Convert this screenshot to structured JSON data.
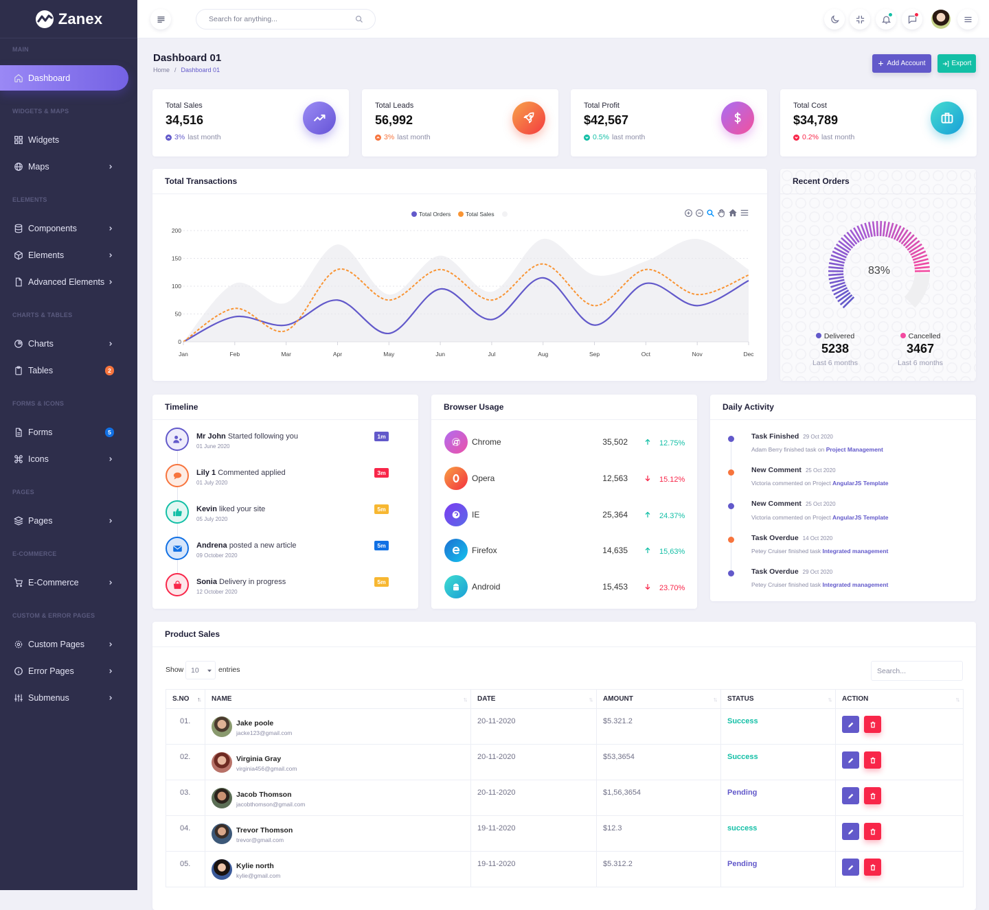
{
  "app": {
    "name": "Zanex"
  },
  "sidebar": {
    "sections": [
      {
        "label": "MAIN",
        "items": [
          {
            "label": "Dashboard",
            "icon": "home-icon",
            "active": true
          }
        ]
      },
      {
        "label": "WIDGETS & MAPS",
        "items": [
          {
            "label": "Widgets",
            "icon": "grid-icon"
          },
          {
            "label": "Maps",
            "icon": "globe-icon",
            "has_submenu": true
          }
        ]
      },
      {
        "label": "ELEMENTS",
        "items": [
          {
            "label": "Components",
            "icon": "database-icon",
            "has_submenu": true
          },
          {
            "label": "Elements",
            "icon": "package-icon",
            "has_submenu": true
          },
          {
            "label": "Advanced Elements",
            "icon": "file-icon",
            "has_submenu": true
          }
        ]
      },
      {
        "label": "CHARTS & TABLES",
        "items": [
          {
            "label": "Charts",
            "icon": "pie-chart-icon",
            "has_submenu": true
          },
          {
            "label": "Tables",
            "icon": "clipboard-icon",
            "badge": "2",
            "badge_color": "#f7743d"
          }
        ]
      },
      {
        "label": "FORMS & ICONS",
        "items": [
          {
            "label": "Forms",
            "icon": "file-text-icon",
            "badge": "5",
            "badge_color": "#1170e4"
          },
          {
            "label": "Icons",
            "icon": "command-icon",
            "has_submenu": true
          }
        ]
      },
      {
        "label": "PAGES",
        "items": [
          {
            "label": "Pages",
            "icon": "layers-icon",
            "has_submenu": true
          }
        ]
      },
      {
        "label": "E-COMMERCE",
        "items": [
          {
            "label": "E-Commerce",
            "icon": "shopping-cart-icon",
            "has_submenu": true
          }
        ]
      },
      {
        "label": "CUSTOM & ERROR PAGES",
        "items": [
          {
            "label": "Custom Pages",
            "icon": "settings-icon",
            "has_submenu": true
          },
          {
            "label": "Error Pages",
            "icon": "info-icon",
            "has_submenu": true
          },
          {
            "label": "Submenus",
            "icon": "sliders-icon",
            "has_submenu": true
          }
        ]
      }
    ]
  },
  "header": {
    "search_placeholder": "Search for anything...",
    "icons": [
      "menu-toggle-icon",
      "search-icon",
      "moon-icon",
      "minimize-icon",
      "bell-icon",
      "message-icon",
      "user-avatar",
      "menu-icon"
    ],
    "notification_dot_color": "#13bfa6",
    "message_dot_color": "#f82649"
  },
  "page": {
    "title": "Dashboard 01",
    "breadcrumb": [
      "Home",
      "Dashboard 01"
    ],
    "add_account_label": "Add Account",
    "export_label": "Export"
  },
  "stats": [
    {
      "label": "Total Sales",
      "value": "34,516",
      "change": "3%",
      "change_suffix": "last month",
      "trend": "up",
      "color": "#6259ca",
      "icon": "trending-up-icon"
    },
    {
      "label": "Total Leads",
      "value": "56,992",
      "change": "3%",
      "change_suffix": "last month",
      "trend": "up",
      "color": "#f7743d",
      "icon": "rocket-icon"
    },
    {
      "label": "Total Profit",
      "value": "$42,567",
      "change": "0.5%",
      "change_suffix": "last month",
      "trend": "down",
      "color": "#13bfa6",
      "icon": "dollar-icon"
    },
    {
      "label": "Total Cost",
      "value": "$34,789",
      "change": "0.2%",
      "change_suffix": "last month",
      "trend": "down",
      "color": "#f82649",
      "icon": "briefcase-icon"
    }
  ],
  "transactions": {
    "title": "Total Transactions",
    "toolbar": [
      "zoom-in-icon",
      "zoom-out-icon",
      "selection-zoom-icon",
      "pan-icon",
      "reset-home-icon",
      "chart-menu-icon"
    ]
  },
  "chart_data": {
    "type": "line",
    "title": "Total Transactions",
    "categories": [
      "Jan",
      "Feb",
      "Mar",
      "Apr",
      "May",
      "Jun",
      "Jul",
      "Aug",
      "Sep",
      "Oct",
      "Nov",
      "Dec"
    ],
    "series": [
      {
        "name": "Total Orders",
        "values": [
          0,
          45,
          30,
          75,
          15,
          95,
          40,
          115,
          30,
          105,
          65,
          110
        ],
        "color": "#6259ca",
        "style": "solid"
      },
      {
        "name": "Total Sales",
        "values": [
          0,
          60,
          20,
          130,
          75,
          130,
          75,
          140,
          65,
          130,
          85,
          120
        ],
        "color": "#f99433",
        "style": "dashed"
      },
      {
        "name": "",
        "values": [
          0,
          105,
          70,
          175,
          85,
          155,
          90,
          185,
          120,
          145,
          185,
          130
        ],
        "color": "#e8e8ec",
        "style": "area"
      }
    ],
    "xlabel": "",
    "ylabel": "",
    "ylim": [
      0,
      200
    ],
    "yticks": [
      0,
      50,
      100,
      150,
      200
    ],
    "grid": true,
    "legend": "top-center"
  },
  "recent_orders": {
    "title": "Recent Orders",
    "percent": 83,
    "center_label": "83%",
    "delivered": {
      "label": "Delivered",
      "value": "5238",
      "period": "Last 6 months",
      "color": "#6259ca"
    },
    "cancelled": {
      "label": "Cancelled",
      "value": "3467",
      "period": "Last 6 months",
      "color": "#f34aa0"
    }
  },
  "timeline": {
    "title": "Timeline",
    "items": [
      {
        "name": "Mr John",
        "text": "Started following you",
        "date": "01 June 2020",
        "badge": "1m",
        "color": "#6259ca",
        "bg": "#eeecfb",
        "badge_color": "#6259ca",
        "icon": "user-plus-icon"
      },
      {
        "name": "Lily 1",
        "text": "Commented applied",
        "date": "01 July 2020",
        "badge": "3m",
        "color": "#f7743d",
        "bg": "#fdece4",
        "badge_color": "#f82649",
        "icon": "comment-icon"
      },
      {
        "name": "Kevin",
        "text": "liked your site",
        "date": "05 July 2020",
        "badge": "5m",
        "color": "#13bfa6",
        "bg": "#e2f7f3",
        "badge_color": "#f7b731",
        "icon": "thumbs-up-icon"
      },
      {
        "name": "Andrena",
        "text": "posted a new article",
        "date": "09 October 2020",
        "badge": "5m",
        "color": "#1170e4",
        "bg": "#d7e6fb",
        "badge_color": "#1170e4",
        "icon": "mail-icon"
      },
      {
        "name": "Sonia",
        "text": "Delivery in progress",
        "date": "12 October 2020",
        "badge": "5m",
        "color": "#f82649",
        "bg": "#fde6ea",
        "badge_color": "#f7b731",
        "icon": "shopping-bag-icon"
      }
    ]
  },
  "browser_usage": {
    "title": "Browser Usage",
    "items": [
      {
        "name": "Chrome",
        "value": "35,502",
        "change": "12.75%",
        "trend": "up",
        "color": "#13bfa6"
      },
      {
        "name": "Opera",
        "value": "12,563",
        "change": "15.12%",
        "trend": "down",
        "color": "#f82649"
      },
      {
        "name": "IE",
        "value": "25,364",
        "change": "24.37%",
        "trend": "up",
        "color": "#13bfa6"
      },
      {
        "name": "Firefox",
        "value": "14,635",
        "change": "15,63%",
        "trend": "up",
        "color": "#13bfa6"
      },
      {
        "name": "Android",
        "value": "15,453",
        "change": "23.70%",
        "trend": "down",
        "color": "#f82649"
      }
    ]
  },
  "daily_activity": {
    "title": "Daily Activity",
    "items": [
      {
        "title": "Task Finished",
        "date": "29 Oct 2020",
        "desc": "Adam Berry finished task on",
        "link": "Project Management",
        "color": "#6259ca"
      },
      {
        "title": "New Comment",
        "date": "25 Oct 2020",
        "desc": "Victoria commented on Project",
        "link": "AngularJS Template",
        "color": "#f7743d"
      },
      {
        "title": "New Comment",
        "date": "25 Oct 2020",
        "desc": "Victoria commented on Project",
        "link": "AngularJS Template",
        "color": "#6259ca"
      },
      {
        "title": "Task Overdue",
        "date": "14 Oct 2020",
        "desc": "Petey Cruiser finished task",
        "link": "Integrated management",
        "color": "#f7743d"
      },
      {
        "title": "Task Overdue",
        "date": "29 Oct 2020",
        "desc": "Petey Cruiser finished task",
        "link": "Integrated management",
        "color": "#6259ca"
      }
    ]
  },
  "product_sales": {
    "title": "Product Sales",
    "show_label": "Show",
    "page_size": "10",
    "entries_label": "entries",
    "search_placeholder": "Search...",
    "columns": [
      "S.NO",
      "NAME",
      "DATE",
      "AMOUNT",
      "STATUS",
      "ACTION"
    ],
    "rows": [
      {
        "sno": "01.",
        "name": "Jake poole",
        "email": "jacke123@gmail.com",
        "date": "20-11-2020",
        "amount": "$5.321.2",
        "status": "Success",
        "status_color": "#13bfa6"
      },
      {
        "sno": "02.",
        "name": "Virginia Gray",
        "email": "virginia456@gmail.com",
        "date": "20-11-2020",
        "amount": "$53,3654",
        "status": "Success",
        "status_color": "#13bfa6"
      },
      {
        "sno": "03.",
        "name": "Jacob Thomson",
        "email": "jacobthomson@gmail.com",
        "date": "20-11-2020",
        "amount": "$1,56,3654",
        "status": "Pending",
        "status_color": "#6259ca"
      },
      {
        "sno": "04.",
        "name": "Trevor Thomson",
        "email": "trevor@gmail.com",
        "date": "19-11-2020",
        "amount": "$12.3",
        "status": "success",
        "status_color": "#13bfa6"
      },
      {
        "sno": "05.",
        "name": "Kylie north",
        "email": "kylie@gmail.com",
        "date": "19-11-2020",
        "amount": "$5.312.2",
        "status": "Pending",
        "status_color": "#6259ca"
      }
    ]
  }
}
